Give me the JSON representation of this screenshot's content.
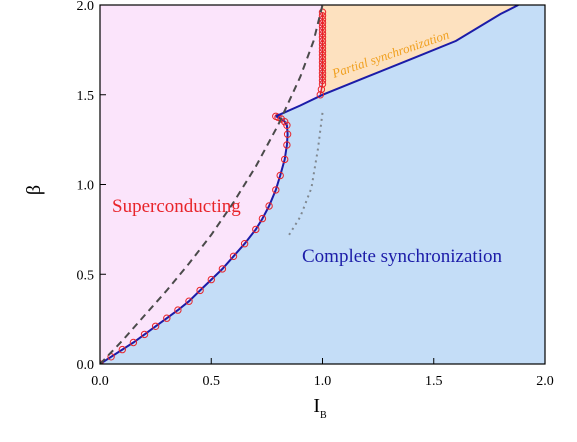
{
  "chart_data": {
    "type": "line",
    "title": "",
    "xlabel": "I",
    "xlabel_sub": "B",
    "ylabel": "β",
    "xlim": [
      0.0,
      2.0
    ],
    "ylim": [
      0.0,
      2.0
    ],
    "xticks": [
      "0.0",
      "0.5",
      "1.0",
      "1.5",
      "2.0"
    ],
    "yticks": [
      "0.0",
      "0.5",
      "1.0",
      "1.5",
      "2.0"
    ],
    "grid": false,
    "colors": {
      "superconducting_fill": "#fbe4fb",
      "complete_sync_fill": "#c4ddf7",
      "partial_sync_fill": "#fde1bf",
      "boundary_line": "#1c1ca8",
      "markers": "#e8242a",
      "dashed_line": "#4a4a4a",
      "dotted_line": "#808890",
      "superconducting_text": "#e8242a",
      "complete_sync_text": "#1c1ca8",
      "partial_sync_text": "#f0a020"
    },
    "annotations": {
      "superconducting": "Superconducting",
      "complete_sync": "Complete synchronization",
      "partial_sync": "Partial synchronization"
    },
    "series": [
      {
        "style": "solid-with-circles",
        "x": [
          0.0,
          0.05,
          0.1,
          0.15,
          0.2,
          0.25,
          0.3,
          0.35,
          0.4,
          0.45,
          0.5,
          0.55,
          0.6,
          0.65,
          0.7,
          0.73,
          0.76,
          0.79,
          0.81,
          0.83,
          0.84,
          0.843,
          0.84,
          0.83,
          0.815,
          0.8,
          0.79
        ],
        "y": [
          0.0,
          0.04,
          0.08,
          0.12,
          0.165,
          0.21,
          0.255,
          0.3,
          0.35,
          0.41,
          0.47,
          0.53,
          0.6,
          0.67,
          0.75,
          0.81,
          0.88,
          0.97,
          1.05,
          1.14,
          1.22,
          1.28,
          1.33,
          1.35,
          1.365,
          1.375,
          1.38
        ]
      },
      {
        "style": "solid",
        "x": [
          0.79,
          0.9,
          1.0,
          1.2,
          1.4,
          1.6,
          1.8,
          1.88
        ],
        "y": [
          1.38,
          1.44,
          1.5,
          1.6,
          1.7,
          1.8,
          1.95,
          2.0
        ]
      },
      {
        "style": "vertical-with-circles",
        "x": [
          0.99,
          0.995,
          1.0,
          1.0,
          1.0,
          1.0,
          1.0,
          1.0,
          1.0,
          1.0,
          1.0,
          1.0,
          1.0,
          1.0,
          1.0,
          1.0,
          1.0,
          1.0,
          1.0,
          1.0,
          1.0,
          1.0,
          1.0
        ],
        "y": [
          1.5,
          1.53,
          1.56,
          1.58,
          1.6,
          1.62,
          1.64,
          1.66,
          1.68,
          1.7,
          1.72,
          1.74,
          1.76,
          1.78,
          1.8,
          1.82,
          1.84,
          1.86,
          1.88,
          1.9,
          1.92,
          1.94,
          1.96
        ]
      },
      {
        "style": "dashed",
        "x": [
          0.0,
          0.1,
          0.2,
          0.3,
          0.4,
          0.5,
          0.6,
          0.7,
          0.8,
          0.9,
          0.96,
          1.0
        ],
        "y": [
          0.0,
          0.13,
          0.27,
          0.41,
          0.56,
          0.72,
          0.9,
          1.1,
          1.33,
          1.6,
          1.8,
          2.0
        ]
      },
      {
        "style": "dotted",
        "x": [
          0.85,
          0.9,
          0.95,
          0.98,
          1.0
        ],
        "y": [
          0.72,
          0.82,
          0.98,
          1.2,
          1.4
        ]
      }
    ]
  }
}
